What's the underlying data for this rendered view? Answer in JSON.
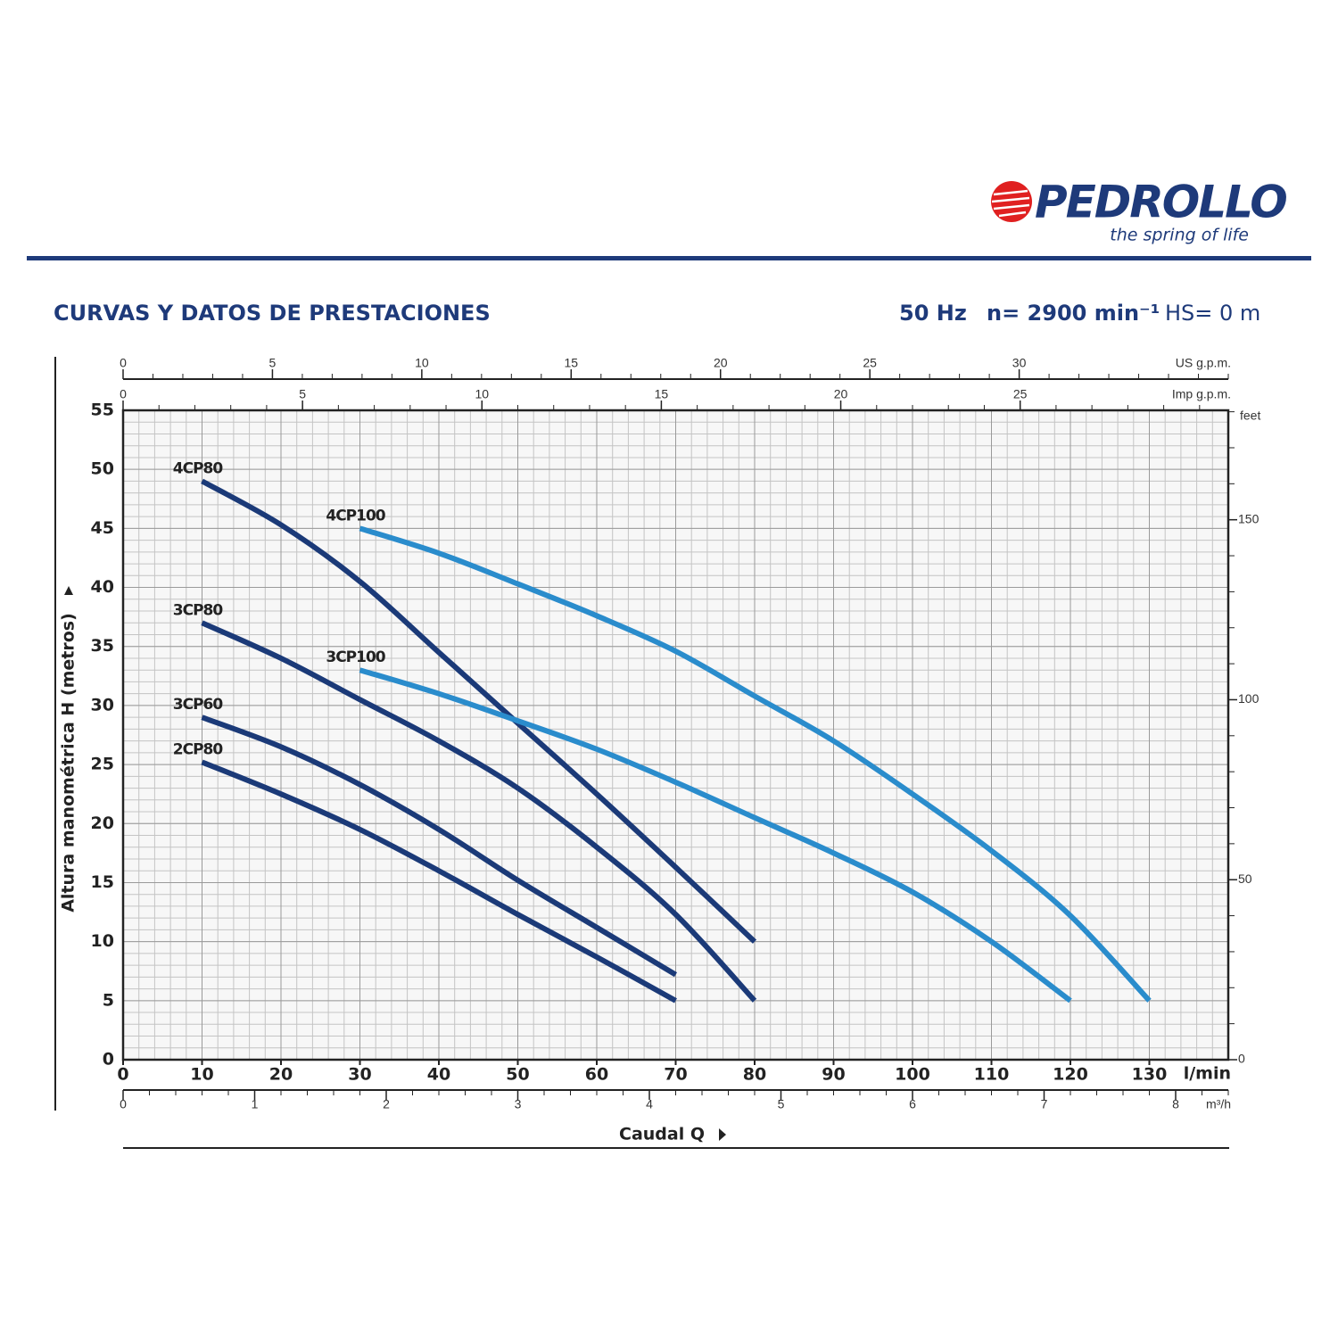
{
  "header": {
    "logo": "PEDROLLO",
    "tagline": "the spring of life"
  },
  "chart_data": {
    "type": "line",
    "title": "CURVAS Y DATOS DE PRESTACIONES",
    "frequency": "50 Hz",
    "speed": "n= 2900 min⁻¹",
    "suction": "HS= 0 m",
    "x_label": "Caudal Q",
    "x_unit": "l/min",
    "y_label": "Altura manométrica H (metros)",
    "xlim": [
      0,
      140
    ],
    "xticks": [
      0,
      10,
      20,
      30,
      40,
      50,
      60,
      70,
      80,
      90,
      100,
      110,
      120,
      130
    ],
    "ylim": [
      0,
      55
    ],
    "yticks": [
      0,
      5,
      10,
      15,
      20,
      25,
      30,
      35,
      40,
      45,
      50,
      55
    ],
    "y2lim": [
      0,
      180.4
    ],
    "y2ticks": [
      0,
      50,
      100,
      150
    ],
    "y2_minor_step": 10,
    "y2_unit": "feet",
    "grid": true,
    "grid_step": {
      "x": 2,
      "y": 1
    },
    "secondary_x_axes": [
      {
        "unit": "US g.p.m.",
        "lim": [
          0,
          37
        ],
        "ticks": [
          0,
          5,
          10,
          15,
          20,
          25,
          30
        ],
        "minor_step": 1
      },
      {
        "unit": "Imp g.p.m.",
        "lim": [
          0,
          30.8
        ],
        "ticks": [
          0,
          5,
          10,
          15,
          20,
          25
        ],
        "minor_step": 1
      },
      {
        "unit": "m³/h",
        "lim": [
          0,
          8.4
        ],
        "ticks": [
          0,
          1,
          2,
          3,
          4,
          5,
          6,
          7,
          8
        ],
        "minor_step": 0.2
      }
    ],
    "series": [
      {
        "name": "4CP80",
        "color": "#1b3a78",
        "x": [
          10,
          20,
          30,
          40,
          50,
          60,
          70,
          80
        ],
        "values": [
          49,
          45.3,
          40.5,
          34.5,
          28.5,
          22.5,
          16.3,
          10
        ]
      },
      {
        "name": "3CP80",
        "color": "#1b3a78",
        "x": [
          10,
          20,
          30,
          40,
          50,
          60,
          70,
          80
        ],
        "values": [
          37,
          34,
          30.5,
          27,
          23,
          18,
          12.3,
          5
        ]
      },
      {
        "name": "3CP60",
        "color": "#1b3a78",
        "x": [
          10,
          20,
          30,
          40,
          50,
          60,
          70
        ],
        "values": [
          29,
          26.5,
          23.3,
          19.5,
          15.2,
          11.2,
          7.2
        ]
      },
      {
        "name": "2CP80",
        "color": "#1b3a78",
        "x": [
          10,
          20,
          30,
          40,
          50,
          60,
          70
        ],
        "values": [
          25.2,
          22.5,
          19.5,
          16,
          12.3,
          8.7,
          5
        ]
      },
      {
        "name": "4CP100",
        "color": "#2a8ccc",
        "x": [
          30,
          40,
          50,
          60,
          70,
          80,
          90,
          100,
          110,
          120,
          130
        ],
        "values": [
          45,
          42.9,
          40.3,
          37.6,
          34.6,
          30.8,
          27,
          22.5,
          17.7,
          12.2,
          5
        ]
      },
      {
        "name": "3CP100",
        "color": "#2a8ccc",
        "x": [
          30,
          40,
          50,
          60,
          70,
          80,
          90,
          100,
          110,
          120
        ],
        "values": [
          33,
          31,
          28.7,
          26.3,
          23.5,
          20.5,
          17.5,
          14.2,
          10,
          5
        ]
      }
    ]
  }
}
